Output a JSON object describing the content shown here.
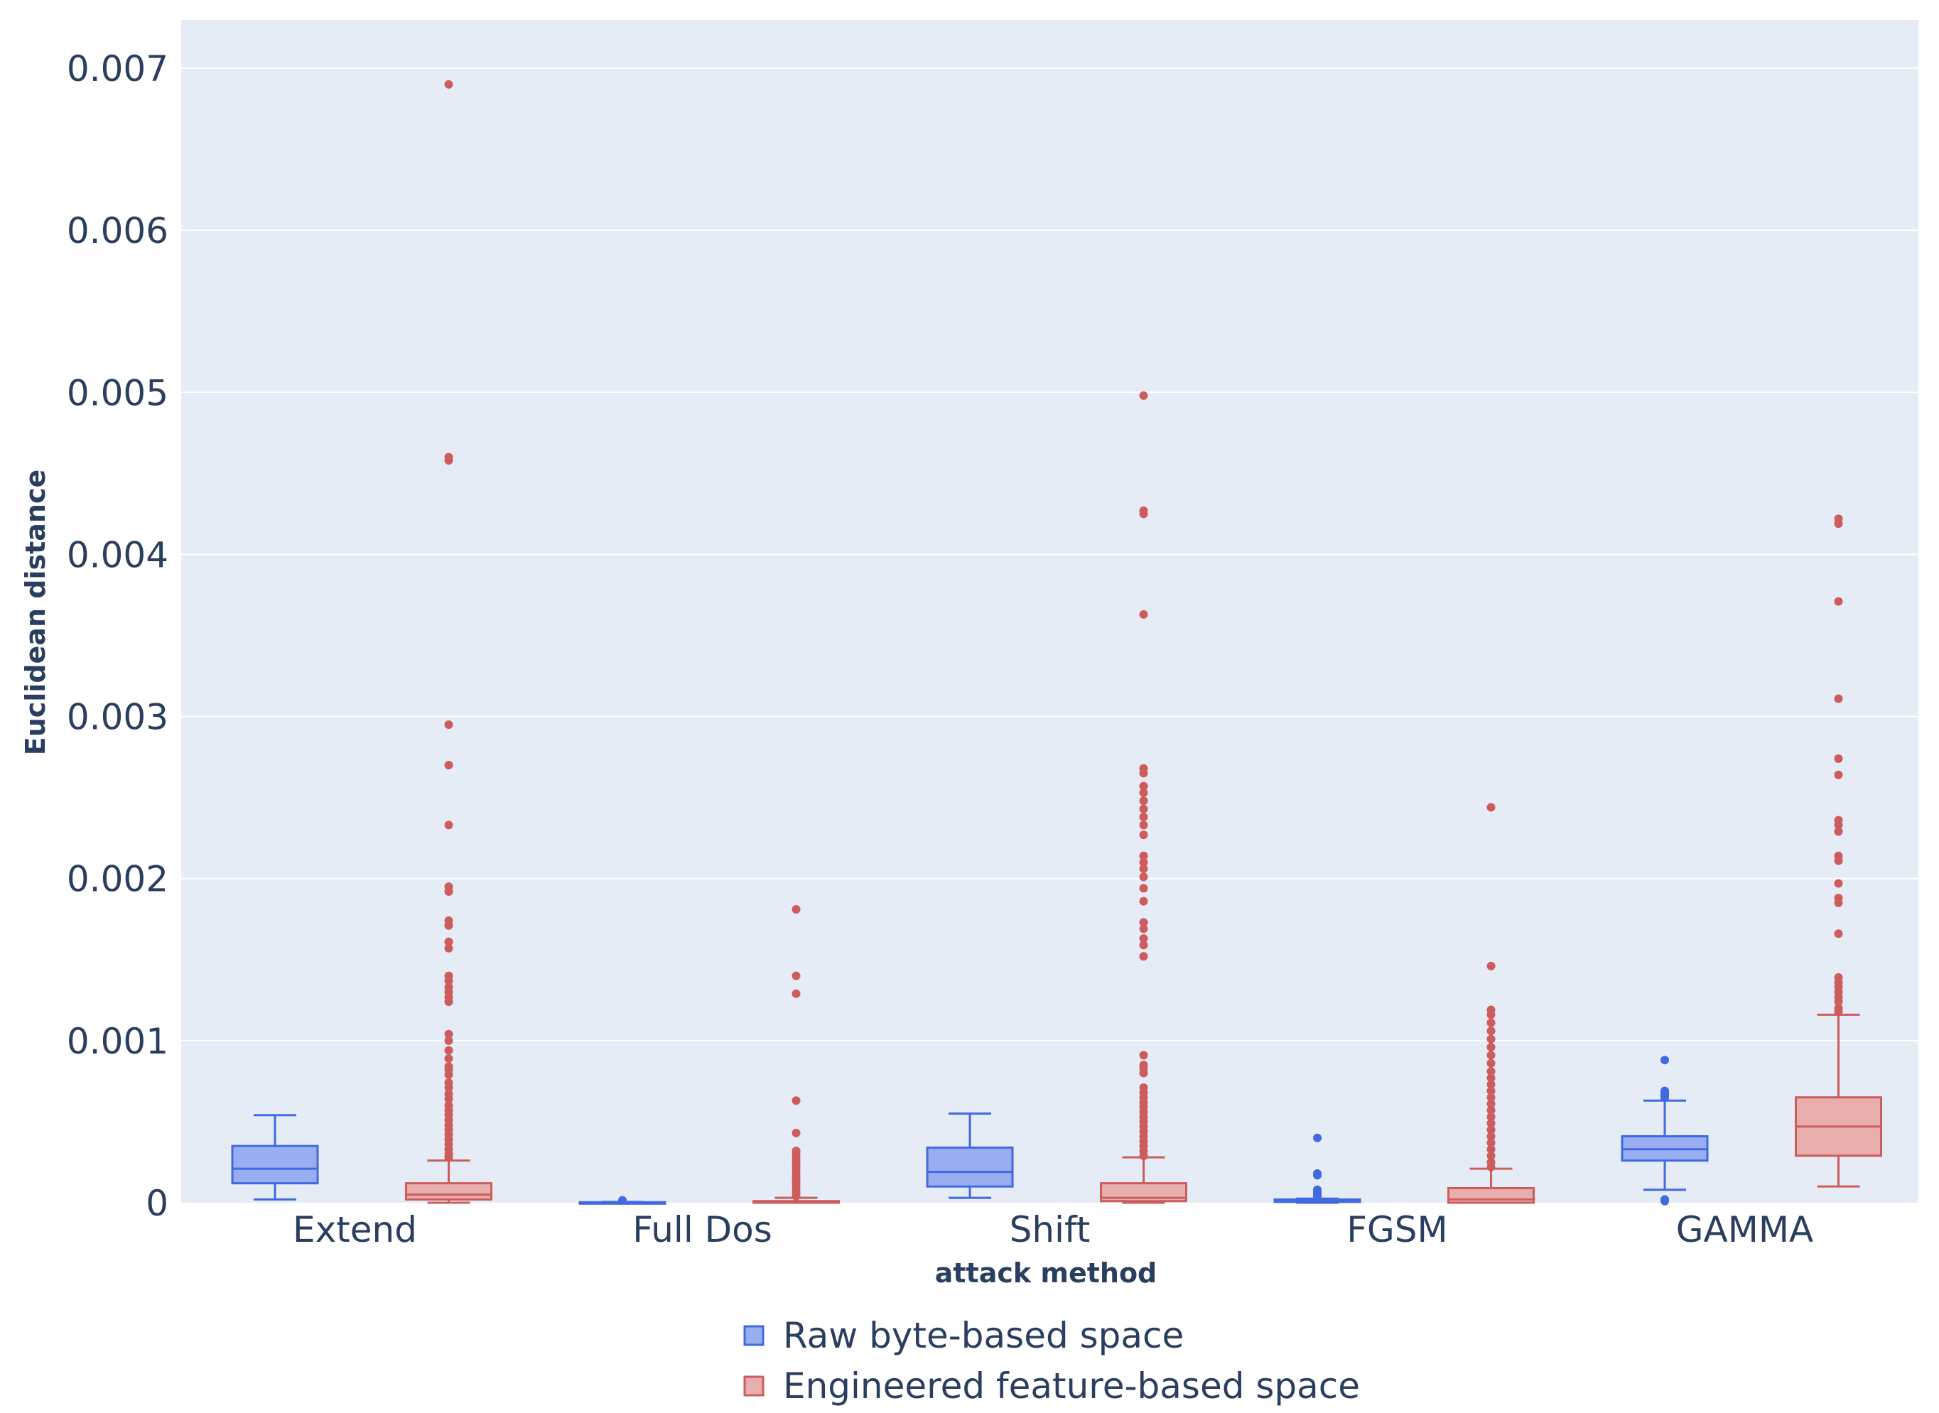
{
  "chart_data": {
    "type": "box",
    "title": "",
    "xlabel": "attack method",
    "ylabel": "Euclidean distance",
    "ylim": [
      0,
      0.0073
    ],
    "yticks": [
      0,
      0.001,
      0.002,
      0.003,
      0.004,
      0.005,
      0.006,
      0.007
    ],
    "ytick_labels": [
      "0",
      "0.001",
      "0.002",
      "0.003",
      "0.004",
      "0.005",
      "0.006",
      "0.007"
    ],
    "categories": [
      "Extend",
      "Full Dos",
      "Shift",
      "FGSM",
      "GAMMA"
    ],
    "grid": true,
    "background": "#e5ecf6",
    "legend_position": "bottom-center",
    "series": [
      {
        "name": "Raw byte-based space",
        "color": "#4169e1",
        "fill": "#99aef0",
        "boxes": [
          {
            "q1": 0.00012,
            "median": 0.00021,
            "q3": 0.00035,
            "low": 2e-05,
            "high": 0.00054,
            "outliers": []
          },
          {
            "q1": 0.0,
            "median": 0.0,
            "q3": 3e-06,
            "low": 0.0,
            "high": 5e-06,
            "outliers": [
              1.5e-05
            ]
          },
          {
            "q1": 0.0001,
            "median": 0.00019,
            "q3": 0.00034,
            "low": 3e-05,
            "high": 0.00055,
            "outliers": []
          },
          {
            "q1": 5e-06,
            "median": 1e-05,
            "q3": 2e-05,
            "low": 0.0,
            "high": 2.5e-05,
            "outliers": [
              0.0004,
              0.00018,
              0.00017,
              8e-05,
              7e-05,
              6e-05,
              5e-05,
              4e-05,
              3e-05
            ]
          },
          {
            "q1": 0.00026,
            "median": 0.00033,
            "q3": 0.00041,
            "low": 8e-05,
            "high": 0.00063,
            "outliers": [
              0.00088,
              0.00069,
              0.00068,
              0.00067,
              0.00066,
              0.00065,
              2e-05,
              1e-05
            ]
          }
        ]
      },
      {
        "name": "Engineered feature-based space",
        "color": "#cd5c5c",
        "fill": "#e8aeae",
        "boxes": [
          {
            "q1": 2e-05,
            "median": 5e-05,
            "q3": 0.00012,
            "low": 0.0,
            "high": 0.00026,
            "outliers": [
              0.0069,
              0.0046,
              0.00458,
              0.00295,
              0.0027,
              0.00233,
              0.00195,
              0.00192,
              0.00174,
              0.00171,
              0.00161,
              0.00157,
              0.0014,
              0.00137,
              0.00133,
              0.0013,
              0.00127,
              0.00124,
              0.00104,
              0.001,
              0.00094,
              0.00089,
              0.00084,
              0.00082,
              0.00079,
              0.00074,
              0.00071,
              0.00067,
              0.00064,
              0.0006,
              0.00057,
              0.00054,
              0.00051,
              0.00048,
              0.00045,
              0.00042,
              0.00039,
              0.00036,
              0.00033,
              0.0003,
              0.00028
            ]
          },
          {
            "q1": 0.0,
            "median": 5e-06,
            "q3": 1e-05,
            "low": 0.0,
            "high": 3e-05,
            "outliers": [
              0.00181,
              0.0014,
              0.00129,
              0.00063,
              0.00043,
              0.00032,
              0.0003,
              0.00028,
              0.00026,
              0.00024,
              0.00022,
              0.0002,
              0.00018,
              0.00016,
              0.00014,
              0.00012,
              0.0001,
              8e-05,
              6e-05,
              4e-05
            ]
          },
          {
            "q1": 1e-05,
            "median": 3e-05,
            "q3": 0.00012,
            "low": 0.0,
            "high": 0.00028,
            "outliers": [
              0.00498,
              0.00427,
              0.00425,
              0.00363,
              0.00268,
              0.00265,
              0.00257,
              0.00253,
              0.00248,
              0.00243,
              0.00238,
              0.00233,
              0.00227,
              0.00214,
              0.0021,
              0.00206,
              0.00201,
              0.00194,
              0.00186,
              0.00173,
              0.00169,
              0.00163,
              0.00159,
              0.00152,
              0.00091,
              0.00085,
              0.00083,
              0.0008,
              0.00071,
              0.00068,
              0.00065,
              0.00062,
              0.00059,
              0.00056,
              0.00053,
              0.0005,
              0.00047,
              0.00044,
              0.00041,
              0.00038,
              0.00035,
              0.00032,
              0.00029
            ]
          },
          {
            "q1": 0.0,
            "median": 2e-05,
            "q3": 9e-05,
            "low": 0.0,
            "high": 0.00021,
            "outliers": [
              0.00244,
              0.00146,
              0.00119,
              0.00116,
              0.00111,
              0.00106,
              0.00101,
              0.00096,
              0.00091,
              0.00086,
              0.00081,
              0.00077,
              0.00073,
              0.00069,
              0.00065,
              0.00061,
              0.00057,
              0.00053,
              0.00049,
              0.00045,
              0.00041,
              0.00037,
              0.00033,
              0.00029,
              0.00025,
              0.00022
            ]
          },
          {
            "q1": 0.00029,
            "median": 0.00047,
            "q3": 0.00065,
            "low": 0.0001,
            "high": 0.00116,
            "outliers": [
              0.00422,
              0.00419,
              0.00371,
              0.00311,
              0.00274,
              0.00264,
              0.00236,
              0.00233,
              0.00229,
              0.00214,
              0.00211,
              0.00197,
              0.00188,
              0.00185,
              0.00166,
              0.00139,
              0.00136,
              0.00133,
              0.0013,
              0.00127,
              0.00124,
              0.0012,
              0.00118
            ]
          }
        ]
      }
    ]
  }
}
